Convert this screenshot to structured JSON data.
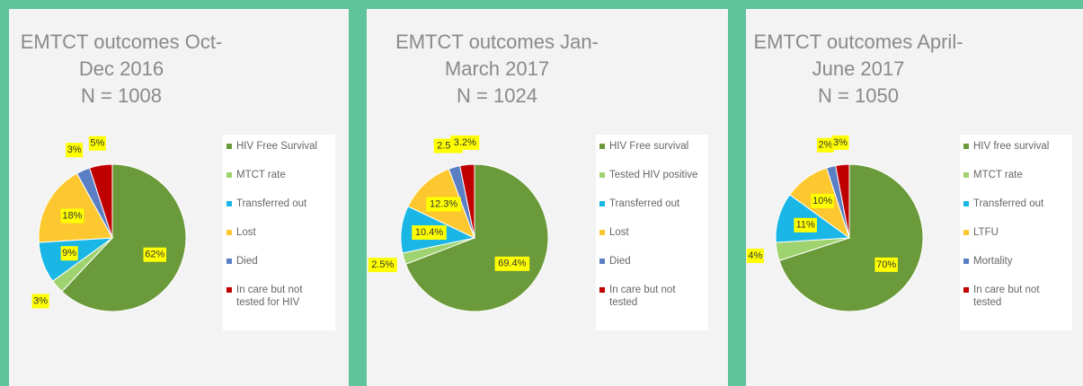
{
  "chart_data": [
    {
      "type": "pie",
      "title": "EMTCT outcomes Oct-Dec 2016",
      "subtitle": "N = 1008",
      "categories": [
        "HIV Free Survival",
        "MTCT rate",
        "Transferred out",
        "Lost",
        "Died",
        "In care but not tested for HIV"
      ],
      "values": [
        62,
        3,
        9,
        18,
        3,
        5
      ],
      "value_labels": [
        "62%",
        "3%",
        "9%",
        "18%",
        "3%",
        "5%"
      ],
      "colors": [
        "#6b9a3a",
        "#9fd36f",
        "#1ab6e6",
        "#fdc82f",
        "#5b7fc4",
        "#c00000"
      ]
    },
    {
      "type": "pie",
      "title": "EMTCT outcomes Jan-March 2017",
      "subtitle": "N = 1024",
      "categories": [
        "HIV Free survival",
        "Tested HIV positive",
        "Transferred out",
        "Lost",
        "Died",
        "In care but not tested"
      ],
      "values": [
        69.4,
        2.5,
        10.4,
        12.3,
        2.5,
        3.2
      ],
      "value_labels": [
        "69.4%",
        "2.5%",
        "10.4%",
        "12.3%",
        "2.5%",
        "3.2%"
      ],
      "colors": [
        "#6b9a3a",
        "#9fd36f",
        "#1ab6e6",
        "#fdc82f",
        "#5b7fc4",
        "#c00000"
      ]
    },
    {
      "type": "pie",
      "title": "EMTCT outcomes April-June 2017",
      "subtitle": "N = 1050",
      "categories": [
        "HIV free survival",
        "MTCT rate",
        "Transferred out",
        "LTFU",
        "Mortality",
        "In care but not tested"
      ],
      "values": [
        70,
        4,
        11,
        10,
        2,
        3
      ],
      "value_labels": [
        "70%",
        "4%",
        "11%",
        "10%",
        "2%",
        "3%"
      ],
      "colors": [
        "#6b9a3a",
        "#9fd36f",
        "#1ab6e6",
        "#fdc82f",
        "#5b7fc4",
        "#c00000"
      ]
    }
  ]
}
